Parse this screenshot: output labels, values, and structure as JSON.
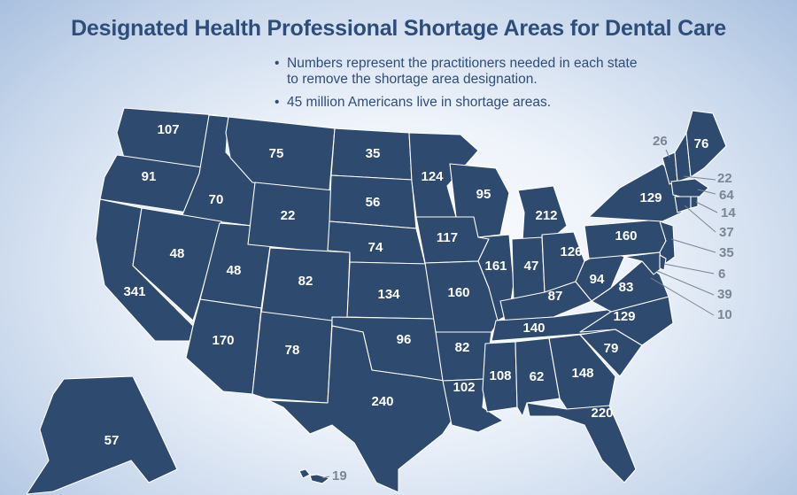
{
  "title": "Designated Health Professional Shortage Areas for Dental Care",
  "bullets": [
    "Numbers represent the practitioners needed in each state to remove the shortage area designation.",
    "45 million Americans live in shortage areas."
  ],
  "bullet_lines": [
    [
      "Numbers represent the practitioners needed in each state",
      "to remove the shortage area designation."
    ],
    [
      "45 million Americans live in shortage areas."
    ]
  ],
  "colors": {
    "state_fill": "#2e4a6f",
    "title": "#2f4d7a",
    "callout": "#7a8595"
  },
  "states": {
    "WA": "107",
    "OR": "91",
    "CA": "341",
    "ID": "70",
    "NV": "48",
    "UT": "48",
    "AZ": "170",
    "MT": "75",
    "WY": "22",
    "CO": "82",
    "NM": "78",
    "ND": "35",
    "SD": "56",
    "NE": "74",
    "KS": "134",
    "OK": "96",
    "TX": "240",
    "MN": "124",
    "IA": "117",
    "MO": "160",
    "AR": "82",
    "LA": "102",
    "WI": "95",
    "IL": "161",
    "MI": "212",
    "IN": "47",
    "OH": "126",
    "KY": "87",
    "TN": "140",
    "MS": "108",
    "AL": "62",
    "GA": "148",
    "FL": "220",
    "SC": "79",
    "NC": "129",
    "VA": "83",
    "WV": "94",
    "PA": "160",
    "NY": "129",
    "ME": "76",
    "VT": "26",
    "NH": "22",
    "MA": "64",
    "RI": "14",
    "CT": "37",
    "NJ": "35",
    "DE": "6",
    "MD": "39",
    "DC": "10",
    "AK": "57",
    "HI": "19"
  }
}
